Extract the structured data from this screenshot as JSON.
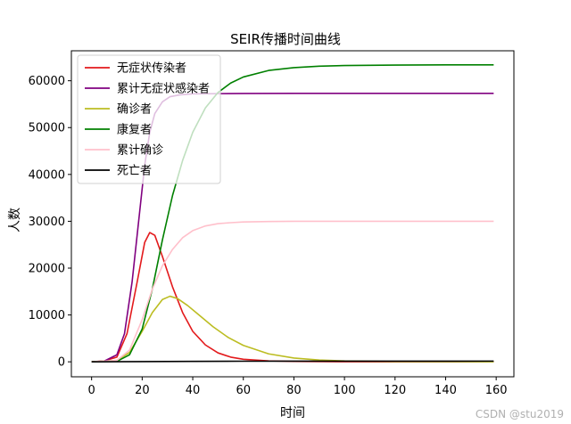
{
  "chart_data": {
    "type": "line",
    "title": "SEIR传播时间曲线",
    "xlabel": "时间",
    "ylabel": "人数",
    "xlim": [
      -8,
      167
    ],
    "ylim": [
      -3200,
      66400
    ],
    "x_ticks": [
      0,
      20,
      40,
      60,
      80,
      100,
      120,
      140,
      160
    ],
    "y_ticks": [
      0,
      10000,
      20000,
      30000,
      40000,
      50000,
      60000
    ],
    "grid": false,
    "legend_position": "top-left",
    "series": [
      {
        "name": "无症状传染者",
        "color": "#e31a1c",
        "points": [
          [
            0,
            0
          ],
          [
            5,
            200
          ],
          [
            10,
            1000
          ],
          [
            14,
            6000
          ],
          [
            18,
            17000
          ],
          [
            21,
            25500
          ],
          [
            23,
            27600
          ],
          [
            25,
            27000
          ],
          [
            28,
            22500
          ],
          [
            32,
            16000
          ],
          [
            36,
            10500
          ],
          [
            40,
            6500
          ],
          [
            45,
            3600
          ],
          [
            50,
            1900
          ],
          [
            55,
            1000
          ],
          [
            60,
            550
          ],
          [
            70,
            200
          ],
          [
            80,
            80
          ],
          [
            100,
            15
          ],
          [
            120,
            5
          ],
          [
            159,
            0
          ]
        ]
      },
      {
        "name": "累计无症状感染者",
        "color": "#800080",
        "points": [
          [
            0,
            0
          ],
          [
            5,
            150
          ],
          [
            10,
            1500
          ],
          [
            13,
            6000
          ],
          [
            16,
            17000
          ],
          [
            19,
            32000
          ],
          [
            21,
            42000
          ],
          [
            23,
            49000
          ],
          [
            25,
            53000
          ],
          [
            28,
            55500
          ],
          [
            31,
            56600
          ],
          [
            35,
            57000
          ],
          [
            40,
            57200
          ],
          [
            50,
            57250
          ],
          [
            60,
            57280
          ],
          [
            80,
            57300
          ],
          [
            100,
            57300
          ],
          [
            159,
            57300
          ]
        ]
      },
      {
        "name": "确诊者",
        "color": "#bcbd22",
        "points": [
          [
            0,
            0
          ],
          [
            10,
            300
          ],
          [
            15,
            2000
          ],
          [
            20,
            6500
          ],
          [
            24,
            10500
          ],
          [
            28,
            13300
          ],
          [
            31,
            14000
          ],
          [
            34,
            13500
          ],
          [
            38,
            12000
          ],
          [
            42,
            10200
          ],
          [
            48,
            7500
          ],
          [
            54,
            5200
          ],
          [
            60,
            3500
          ],
          [
            70,
            1700
          ],
          [
            80,
            800
          ],
          [
            90,
            380
          ],
          [
            100,
            180
          ],
          [
            120,
            40
          ],
          [
            140,
            10
          ],
          [
            159,
            0
          ]
        ]
      },
      {
        "name": "康复者",
        "color": "#008000",
        "points": [
          [
            0,
            0
          ],
          [
            10,
            100
          ],
          [
            15,
            1500
          ],
          [
            20,
            7000
          ],
          [
            24,
            15500
          ],
          [
            28,
            26000
          ],
          [
            32,
            35500
          ],
          [
            36,
            43000
          ],
          [
            40,
            49000
          ],
          [
            45,
            54200
          ],
          [
            50,
            57500
          ],
          [
            55,
            59500
          ],
          [
            60,
            60800
          ],
          [
            70,
            62200
          ],
          [
            80,
            62800
          ],
          [
            90,
            63100
          ],
          [
            100,
            63250
          ],
          [
            120,
            63350
          ],
          [
            140,
            63400
          ],
          [
            159,
            63400
          ]
        ]
      },
      {
        "name": "累计确诊",
        "color": "#ffc0cb",
        "points": [
          [
            0,
            0
          ],
          [
            10,
            300
          ],
          [
            15,
            2500
          ],
          [
            20,
            9000
          ],
          [
            24,
            15500
          ],
          [
            28,
            20500
          ],
          [
            32,
            24000
          ],
          [
            36,
            26500
          ],
          [
            40,
            28000
          ],
          [
            45,
            29000
          ],
          [
            50,
            29500
          ],
          [
            55,
            29700
          ],
          [
            60,
            29850
          ],
          [
            70,
            29950
          ],
          [
            80,
            30000
          ],
          [
            100,
            30000
          ],
          [
            159,
            30000
          ]
        ]
      },
      {
        "name": "死亡者",
        "color": "#000000",
        "points": [
          [
            0,
            0
          ],
          [
            20,
            50
          ],
          [
            40,
            100
          ],
          [
            60,
            130
          ],
          [
            80,
            140
          ],
          [
            100,
            145
          ],
          [
            159,
            150
          ]
        ]
      }
    ]
  },
  "watermark": "CSDN @stu2019"
}
